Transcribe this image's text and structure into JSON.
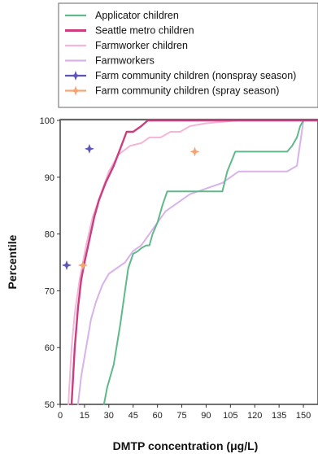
{
  "chart_data": {
    "type": "line",
    "xlabel": "DMTP concentration (μg/L)",
    "ylabel": "Percentile",
    "xlim": [
      0,
      159
    ],
    "ylim": [
      50,
      100
    ],
    "x_ticks": [
      0,
      15,
      30,
      45,
      60,
      75,
      90,
      105,
      120,
      135,
      150
    ],
    "y_ticks": [
      50,
      60,
      70,
      80,
      90,
      100
    ],
    "grid": false,
    "legend_position": "top",
    "series": [
      {
        "name": "Applicator children",
        "color": "#5fb98a",
        "style": "line",
        "points": [
          [
            27,
            50
          ],
          [
            29,
            53
          ],
          [
            33,
            57
          ],
          [
            37,
            64
          ],
          [
            40,
            70
          ],
          [
            42,
            74
          ],
          [
            45,
            76.5
          ],
          [
            48,
            77
          ],
          [
            50,
            77.5
          ],
          [
            53,
            78
          ],
          [
            55,
            78
          ],
          [
            57,
            80
          ],
          [
            60,
            82
          ],
          [
            63,
            85
          ],
          [
            66,
            87.5
          ],
          [
            70,
            87.5
          ],
          [
            80,
            87.5
          ],
          [
            90,
            87.5
          ],
          [
            100,
            87.5
          ],
          [
            103,
            91
          ],
          [
            108,
            94.5
          ],
          [
            115,
            94.5
          ],
          [
            125,
            94.5
          ],
          [
            140,
            94.5
          ],
          [
            143,
            95.5
          ],
          [
            146,
            97
          ],
          [
            148,
            99
          ],
          [
            150,
            100
          ],
          [
            159,
            100
          ]
        ]
      },
      {
        "name": "Seattle metro children",
        "color": "#cc3d80",
        "style": "line",
        "points": [
          [
            7,
            50
          ],
          [
            9,
            60
          ],
          [
            11,
            67
          ],
          [
            13,
            72
          ],
          [
            15,
            75
          ],
          [
            18,
            79
          ],
          [
            21,
            83
          ],
          [
            24,
            86
          ],
          [
            28,
            89
          ],
          [
            33,
            92
          ],
          [
            37,
            95
          ],
          [
            41,
            98
          ],
          [
            45,
            98
          ],
          [
            50,
            99
          ],
          [
            54,
            100
          ],
          [
            70,
            100
          ],
          [
            159,
            100
          ]
        ]
      },
      {
        "name": "Farmworker children",
        "color": "#f4b6d8",
        "style": "line",
        "points": [
          [
            5,
            50
          ],
          [
            7,
            60
          ],
          [
            9,
            66
          ],
          [
            12,
            72
          ],
          [
            16,
            78
          ],
          [
            20,
            83
          ],
          [
            25,
            87
          ],
          [
            30,
            91
          ],
          [
            36,
            94
          ],
          [
            43,
            95.5
          ],
          [
            50,
            96
          ],
          [
            55,
            97
          ],
          [
            62,
            97
          ],
          [
            68,
            98
          ],
          [
            74,
            98
          ],
          [
            80,
            99
          ],
          [
            90,
            99.5
          ],
          [
            110,
            100
          ],
          [
            140,
            100
          ],
          [
            159,
            100
          ]
        ]
      },
      {
        "name": "Farmworkers",
        "color": "#d7b3ea",
        "style": "line",
        "points": [
          [
            11,
            50
          ],
          [
            13,
            55
          ],
          [
            16,
            60
          ],
          [
            19,
            65
          ],
          [
            22,
            68
          ],
          [
            26,
            71
          ],
          [
            30,
            73
          ],
          [
            35,
            74
          ],
          [
            40,
            75
          ],
          [
            45,
            77
          ],
          [
            50,
            78
          ],
          [
            55,
            80
          ],
          [
            60,
            82
          ],
          [
            65,
            84
          ],
          [
            70,
            85
          ],
          [
            75,
            86
          ],
          [
            80,
            87
          ],
          [
            90,
            88
          ],
          [
            100,
            89
          ],
          [
            110,
            91
          ],
          [
            125,
            91
          ],
          [
            140,
            91
          ],
          [
            146,
            92
          ],
          [
            150,
            100
          ],
          [
            159,
            100
          ]
        ]
      },
      {
        "name": "Farm community children (nonspray season)",
        "color": "#5d54b8",
        "style": "marker",
        "points": [
          [
            4,
            74.5
          ],
          [
            18,
            95
          ]
        ]
      },
      {
        "name": "Farm community children (spray season)",
        "color": "#f4a373",
        "style": "marker",
        "points": [
          [
            14,
            74.5
          ],
          [
            83,
            94.5
          ]
        ]
      }
    ]
  }
}
